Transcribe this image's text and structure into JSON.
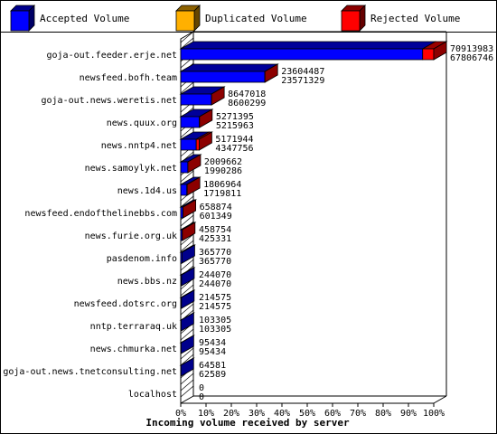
{
  "chart_data": {
    "type": "bar",
    "orientation": "horizontal",
    "stacked": true,
    "three_d": true,
    "xlabel": "Incoming volume received by server",
    "xlim_percent": [
      0,
      100
    ],
    "x_ticks": [
      "0%",
      "10%",
      "20%",
      "30%",
      "40%",
      "50%",
      "60%",
      "70%",
      "80%",
      "90%",
      "100%"
    ],
    "legend_placement": "top",
    "series": [
      {
        "name": "Accepted Volume",
        "color": "#0000ff"
      },
      {
        "name": "Duplicated Volume",
        "color": "#ffb000"
      },
      {
        "name": "Rejected Volume",
        "color": "#ff0000"
      }
    ],
    "categories": [
      "goja-out.feeder.erje.net",
      "newsfeed.bofh.team",
      "goja-out.news.weretis.net",
      "news.quux.org",
      "news.nntp4.net",
      "news.samoylyk.net",
      "news.1d4.us",
      "newsfeed.endofthelinebbs.com",
      "news.furie.org.uk",
      "pasdenom.info",
      "news.bbs.nz",
      "newsfeed.dotsrc.org",
      "nntp.terraraq.uk",
      "news.chmurka.net",
      "goja-out.news.tnetconsulting.net",
      "localhost"
    ],
    "total_volume": [
      70913983,
      23604487,
      8647018,
      5271395,
      5171944,
      2009662,
      1806964,
      658874,
      458754,
      365770,
      244070,
      214575,
      103305,
      95434,
      64581,
      0
    ],
    "accepted_volume": [
      67806746,
      23571329,
      8600299,
      5215963,
      4347756,
      1990286,
      1719811,
      601349,
      425331,
      365770,
      244070,
      214575,
      103305,
      95434,
      62589,
      0
    ],
    "total_labels": [
      "70913983",
      "23604487",
      "8647018",
      "5271395",
      "5171944",
      "2009662",
      "1806964",
      "658874",
      "458754",
      "365770",
      "244070",
      "214575",
      "103305",
      "95434",
      "64581",
      "0"
    ],
    "accepted_labels": [
      "67806746",
      "23571329",
      "8600299",
      "5215963",
      "4347756",
      "1990286",
      "1719811",
      "601349",
      "425331",
      "365770",
      "244070",
      "214575",
      "103305",
      "95434",
      "62589",
      "0"
    ]
  }
}
